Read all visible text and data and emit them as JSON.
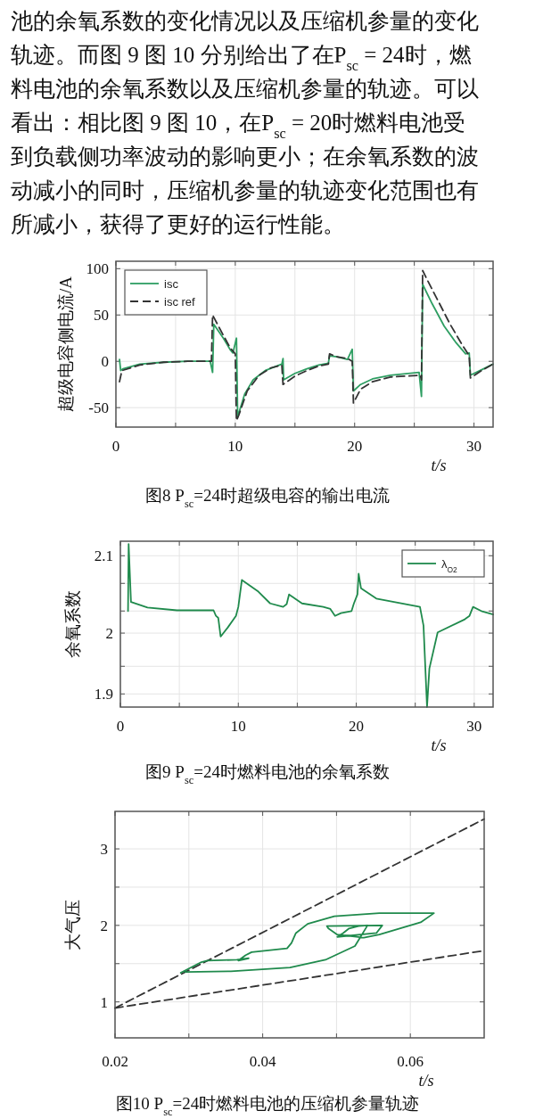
{
  "chart_data": [
    {
      "type": "line",
      "title": "图8 P$_{sc}$=24时超级电容的输出电流",
      "ylabel": "超级电容侧电流/A",
      "xlabel": "t/s",
      "annotations": [
        "池的余氧系数的变化情况以及压缩机参量的变化",
        "轨迹。而图 9 图 10 分别给出了在P$_{sc}$ = 24时，燃",
        "料电池的余氧系数以及压缩机参量的轨迹。可以",
        "看出：相比图 9 图 10，在P$_{sc}$ = 20时燃料电池受",
        "到负载侧功率波动的影响更小；在余氧系数的波",
        "动减小的同时，压缩机参量的轨迹变化范围也有",
        "所减小，获得了更好的运行性能。"
      ],
      "xlim": [
        0,
        31.6
      ],
      "ylim": [
        -71,
        108
      ],
      "xticks": [
        0,
        {
          "value": 5,
          "label": null
        },
        10,
        {
          "value": 15,
          "label": null
        },
        20,
        {
          "value": 25,
          "label": null
        },
        30
      ],
      "yticks": [
        -50,
        0,
        50,
        100
      ],
      "grid": true,
      "legend": "top left",
      "series": [
        {
          "name": "isc",
          "color": "#2e9e62",
          "line_style": "solid",
          "x": [
            0.3,
            0.4,
            0.6,
            2,
            4,
            6,
            7.9,
            8.1,
            8.2,
            9,
            9.6,
            9.8,
            10.1,
            10.2,
            10.8,
            11.5,
            12.5,
            13.5,
            13.9,
            14.0,
            14.05,
            15,
            16,
            17,
            17.8,
            17.9,
            18.5,
            19.4,
            19.8,
            19.9,
            20.5,
            21.5,
            23,
            25.4,
            25.6,
            25.7,
            26.5,
            27.5,
            28.5,
            29.3,
            29.6,
            29.7,
            30.5,
            31.6
          ],
          "values": [
            2,
            -10,
            -8,
            -3,
            -1,
            0,
            0,
            -12,
            40,
            25,
            12,
            9,
            25,
            -60,
            -35,
            -20,
            -10,
            -5,
            -3,
            3,
            -20,
            -13,
            -8,
            -4,
            -2,
            6,
            5,
            2,
            13,
            -32,
            -25,
            -19,
            -15,
            -12,
            -38,
            83,
            62,
            38,
            20,
            8,
            9,
            -15,
            -10,
            -3
          ]
        },
        {
          "name": "isc ref",
          "color": "#333333",
          "line_style": "dashed",
          "x": [
            0.3,
            0.5,
            2,
            4,
            6,
            8.0,
            8.1,
            8.3,
            9,
            9.6,
            10.0,
            10.1,
            10.3,
            11,
            12,
            13,
            13.9,
            14.0,
            15,
            16,
            17,
            17.8,
            17.9,
            18.5,
            19.4,
            19.8,
            19.9,
            20.5,
            21.5,
            23,
            25.5,
            25.6,
            25.7,
            26,
            27,
            28,
            29,
            29.6,
            29.7,
            30.5,
            31.6
          ],
          "values": [
            -22,
            -10,
            -4,
            -1,
            0,
            0,
            50,
            45,
            28,
            14,
            8,
            -64,
            -58,
            -32,
            -15,
            -7,
            -4,
            -25,
            -16,
            -10,
            -5,
            -3,
            8,
            5,
            3,
            0,
            -45,
            -30,
            -22,
            -17,
            -15,
            -20,
            98,
            90,
            65,
            40,
            18,
            6,
            -18,
            -11,
            -3
          ]
        }
      ]
    },
    {
      "type": "line",
      "title": "图9  P$_{sc}$=24时燃料电池的余氧系数",
      "ylabel": "余氧系数",
      "xlabel": "t/s",
      "xlim": [
        0,
        31.6
      ],
      "ylim": [
        1.881,
        2.121
      ],
      "xticks": [
        0,
        {
          "value": 5,
          "label": null
        },
        10,
        {
          "value": 15,
          "label": null
        },
        20,
        {
          "value": 25,
          "label": null
        },
        30
      ],
      "yticks": [
        2.1,
        {
          "value": 2.06,
          "label": null
        },
        {
          "value": 2.02,
          "label": null
        },
        {
          "value": 1.988,
          "label": "2"
        },
        {
          "value": 1.94,
          "label": null
        },
        1.9
      ],
      "grid": true,
      "legend": "top right",
      "series": [
        {
          "name": "λ$_{O2}$",
          "color": "#1f8a4c",
          "line_style": "solid",
          "x": [
            0.65,
            0.7,
            0.9,
            2.3,
            4.8,
            7.9,
            8.1,
            8.3,
            8.5,
            9.1,
            9.8,
            10.0,
            10.3,
            11.7,
            12.7,
            13.8,
            14.1,
            14.3,
            15.4,
            17.2,
            17.8,
            18.2,
            18.7,
            19.6,
            19.8,
            20.1,
            20.2,
            20.4,
            21.7,
            25.4,
            25.7,
            26.0,
            26.2,
            26.9,
            29.2,
            29.6,
            29.9,
            30.6,
            31.6
          ],
          "values": [
            2.02,
            2.117,
            2.033,
            2.025,
            2.021,
            2.021,
            2.013,
            2.01,
            1.983,
            1.996,
            2.013,
            2.026,
            2.065,
            2.048,
            2.031,
            2.026,
            2.03,
            2.044,
            2.031,
            2.026,
            2.023,
            2.013,
            2.017,
            2.02,
            2.031,
            2.044,
            2.074,
            2.053,
            2.038,
            2.026,
            1.999,
            1.881,
            1.937,
            1.989,
            2.008,
            2.013,
            2.026,
            2.02,
            2.015
          ]
        }
      ]
    },
    {
      "type": "line",
      "title": "图10  P$_{sc}$=24时燃料电池的压缩机参量轨迹",
      "ylabel": "大气压",
      "xlabel": "t/s",
      "xlim": [
        0.02,
        0.07
      ],
      "ylim": [
        0.53,
        3.49
      ],
      "xticks": [
        0.02,
        {
          "value": 0.03,
          "label": null
        },
        0.04,
        {
          "value": 0.05,
          "label": null
        },
        0.06
      ],
      "yticks": [
        1,
        {
          "value": 1.5,
          "label": null
        },
        2,
        {
          "value": 2.5,
          "label": null
        },
        3
      ],
      "grid": true,
      "series": [
        {
          "color": "#333333",
          "line_style": "dashed",
          "x": [
            0.02,
            0.07
          ],
          "values": [
            0.92,
            3.39
          ]
        },
        {
          "color": "#333333",
          "line_style": "dashed",
          "x": [
            0.02,
            0.07
          ],
          "values": [
            0.92,
            1.67
          ]
        },
        {
          "color": "#1f8a4c",
          "line_style": "solid",
          "x": [
            0.0289,
            0.0317,
            0.0325,
            0.0365,
            0.0381,
            0.0367,
            0.0377,
            0.0385,
            0.0433,
            0.0439,
            0.0445,
            0.0461,
            0.0497,
            0.0558,
            0.0632,
            0.0614,
            0.0558,
            0.0537,
            0.0501,
            0.0489,
            0.0487,
            0.0562,
            0.0554,
            0.0501,
            0.0509,
            0.0517,
            0.053,
            0.0542,
            0.0525,
            0.0485,
            0.0437,
            0.0357,
            0.0295
          ],
          "values": [
            1.38,
            1.52,
            1.54,
            1.55,
            1.57,
            1.54,
            1.61,
            1.65,
            1.7,
            1.77,
            1.9,
            2.02,
            2.12,
            2.16,
            2.16,
            2.04,
            1.88,
            1.84,
            1.88,
            1.96,
            1.99,
            2.0,
            1.9,
            1.85,
            1.9,
            1.96,
            1.99,
            2.0,
            1.73,
            1.55,
            1.45,
            1.4,
            1.39
          ]
        }
      ]
    }
  ]
}
